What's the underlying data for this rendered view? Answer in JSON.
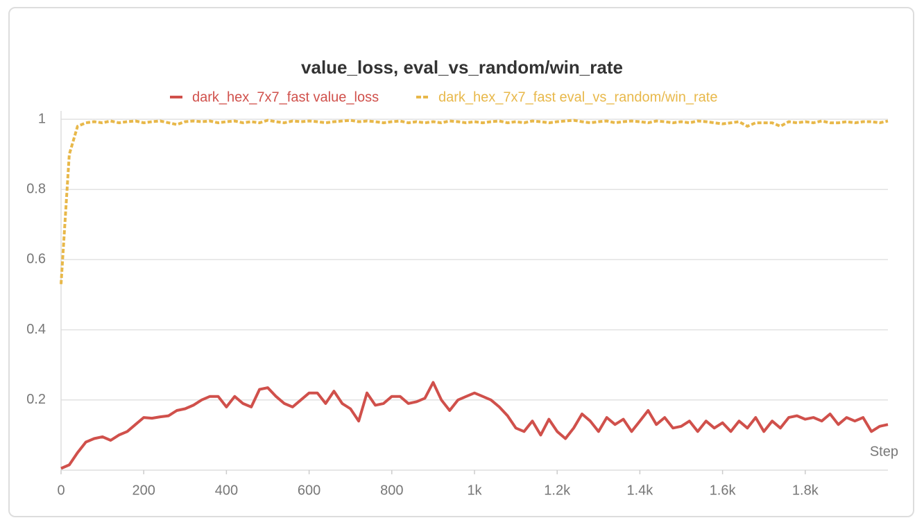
{
  "chart_data": {
    "type": "line",
    "title": "value_loss, eval_vs_random/win_rate",
    "x_label": "Step",
    "x": [
      0,
      20,
      40,
      60,
      80,
      100,
      120,
      140,
      160,
      180,
      200,
      220,
      240,
      260,
      280,
      300,
      320,
      340,
      360,
      380,
      400,
      420,
      440,
      460,
      480,
      500,
      520,
      540,
      560,
      580,
      600,
      620,
      640,
      660,
      680,
      700,
      720,
      740,
      760,
      780,
      800,
      820,
      840,
      860,
      880,
      900,
      920,
      940,
      960,
      980,
      1000,
      1020,
      1040,
      1060,
      1080,
      1100,
      1120,
      1140,
      1160,
      1180,
      1200,
      1220,
      1240,
      1260,
      1280,
      1300,
      1320,
      1340,
      1360,
      1380,
      1400,
      1420,
      1440,
      1460,
      1480,
      1500,
      1520,
      1540,
      1560,
      1580,
      1600,
      1620,
      1640,
      1660,
      1680,
      1700,
      1720,
      1740,
      1760,
      1780,
      1800,
      1820,
      1840,
      1860,
      1880,
      1900,
      1920,
      1940,
      1960,
      1980,
      2000
    ],
    "series": [
      {
        "name": "dark_hex_7x7_fast value_loss",
        "color": "#d0504b",
        "dashed": false,
        "values": [
          0.005,
          0.015,
          0.05,
          0.08,
          0.09,
          0.095,
          0.085,
          0.1,
          0.11,
          0.13,
          0.15,
          0.148,
          0.152,
          0.155,
          0.17,
          0.175,
          0.185,
          0.2,
          0.21,
          0.21,
          0.18,
          0.21,
          0.19,
          0.18,
          0.23,
          0.235,
          0.21,
          0.19,
          0.18,
          0.2,
          0.22,
          0.22,
          0.19,
          0.225,
          0.19,
          0.175,
          0.14,
          0.22,
          0.185,
          0.19,
          0.21,
          0.21,
          0.19,
          0.195,
          0.205,
          0.25,
          0.2,
          0.17,
          0.2,
          0.21,
          0.22,
          0.21,
          0.2,
          0.18,
          0.155,
          0.12,
          0.11,
          0.14,
          0.1,
          0.145,
          0.11,
          0.09,
          0.12,
          0.16,
          0.14,
          0.11,
          0.15,
          0.13,
          0.145,
          0.11,
          0.14,
          0.17,
          0.13,
          0.15,
          0.12,
          0.125,
          0.14,
          0.11,
          0.14,
          0.12,
          0.135,
          0.11,
          0.14,
          0.12,
          0.15,
          0.11,
          0.14,
          0.12,
          0.15,
          0.155,
          0.145,
          0.15,
          0.14,
          0.16,
          0.13,
          0.15,
          0.14,
          0.15,
          0.11,
          0.125,
          0.13
        ]
      },
      {
        "name": "dark_hex_7x7_fast eval_vs_random/win_rate",
        "color": "#e8b84a",
        "dashed": true,
        "values": [
          0.53,
          0.9,
          0.98,
          0.99,
          0.993,
          0.99,
          0.995,
          0.99,
          0.993,
          0.995,
          0.99,
          0.993,
          0.995,
          0.99,
          0.985,
          0.993,
          0.995,
          0.993,
          0.995,
          0.99,
          0.993,
          0.995,
          0.99,
          0.993,
          0.99,
          0.997,
          0.993,
          0.99,
          0.995,
          0.993,
          0.995,
          0.993,
          0.99,
          0.993,
          0.995,
          0.997,
          0.993,
          0.995,
          0.993,
          0.99,
          0.993,
          0.995,
          0.99,
          0.993,
          0.99,
          0.993,
          0.99,
          0.995,
          0.993,
          0.99,
          0.993,
          0.99,
          0.993,
          0.995,
          0.99,
          0.993,
          0.99,
          0.995,
          0.993,
          0.99,
          0.993,
          0.995,
          0.997,
          0.993,
          0.99,
          0.993,
          0.995,
          0.99,
          0.993,
          0.995,
          0.993,
          0.99,
          0.995,
          0.993,
          0.99,
          0.993,
          0.99,
          0.995,
          0.993,
          0.99,
          0.987,
          0.99,
          0.993,
          0.98,
          0.99,
          0.99,
          0.99,
          0.98,
          0.993,
          0.99,
          0.993,
          0.99,
          0.995,
          0.99,
          0.99,
          0.993,
          0.99,
          0.993,
          0.993,
          0.99,
          0.995
        ]
      }
    ],
    "xlim": [
      0,
      2000
    ],
    "ylim": [
      0,
      1
    ],
    "xticks": [
      0,
      200,
      400,
      600,
      800,
      {
        "value": 1000,
        "label": "1k"
      },
      {
        "value": 1200,
        "label": "1.2k"
      },
      {
        "value": 1400,
        "label": "1.4k"
      },
      {
        "value": 1600,
        "label": "1.6k"
      },
      {
        "value": 1800,
        "label": "1.8k"
      }
    ],
    "yticks": [
      0.2,
      0.4,
      0.6,
      0.8,
      1
    ],
    "grid": true
  }
}
